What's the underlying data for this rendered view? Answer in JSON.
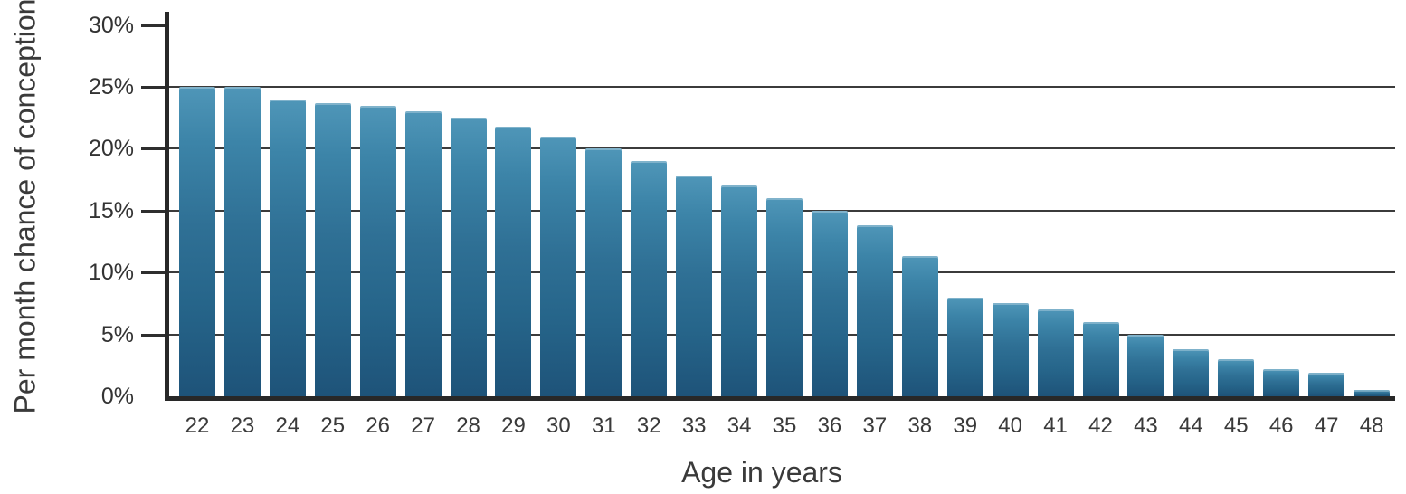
{
  "chart_data": {
    "type": "bar",
    "title": "",
    "xlabel": "Age in years",
    "ylabel": "Per month chance of conception",
    "categories": [
      "22",
      "23",
      "24",
      "25",
      "26",
      "27",
      "28",
      "29",
      "30",
      "31",
      "32",
      "33",
      "34",
      "35",
      "36",
      "37",
      "38",
      "39",
      "40",
      "41",
      "42",
      "43",
      "44",
      "45",
      "46",
      "47",
      "48"
    ],
    "values": [
      25,
      25,
      24,
      23.7,
      23.5,
      23,
      22.5,
      21.8,
      21,
      20,
      19,
      17.8,
      17,
      16,
      15,
      13.8,
      11.3,
      8,
      7.5,
      7,
      6,
      5,
      3.8,
      3,
      2.2,
      1.9,
      0.5
    ],
    "ylim": [
      0,
      30
    ],
    "yticks": [
      {
        "value": 0,
        "label": "0%"
      },
      {
        "value": 5,
        "label": "5%"
      },
      {
        "value": 10,
        "label": "10%"
      },
      {
        "value": 15,
        "label": "15%"
      },
      {
        "value": 20,
        "label": "20%"
      },
      {
        "value": 25,
        "label": "25%"
      },
      {
        "value": 30,
        "label": "30%"
      }
    ],
    "gridline_values": [
      5,
      10,
      15,
      20,
      25
    ],
    "legend": null,
    "grid": "horizontal",
    "colors": {
      "bar_top": "#4f96b8",
      "bar_upper_mid": "#3c84a8",
      "bar_mid": "#2f7095",
      "bar_lower_mid": "#26658a",
      "bar_bottom": "#1e5379",
      "axis": "#282828",
      "gridline": "#3b3b3b",
      "text": "#3a3a3a"
    }
  }
}
